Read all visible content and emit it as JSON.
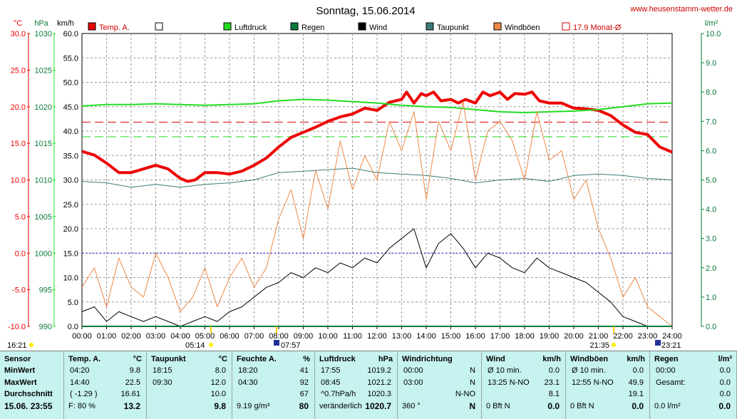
{
  "title": "Sonntag, 15.06.2014",
  "site": "www.heusenstamm-wetter.de",
  "colors": {
    "temp": "#ee0000",
    "pressure": "#22dd22",
    "rain": "#0a7a3a",
    "wind": "#000000",
    "dewpoint": "#3a7a7a",
    "gust": "#ee8844",
    "monthavg": "#dd0000",
    "panel": "#c6f2ef"
  },
  "axes": {
    "temp": {
      "unit": "°C",
      "ticks": [
        "30.0",
        "25.0",
        "20.0",
        "15.0",
        "10.0",
        "5.0",
        "0.0",
        "-5.0",
        "-10.0"
      ]
    },
    "pressure": {
      "unit": "hPa",
      "ticks": [
        "1030",
        "1025",
        "1020",
        "1015",
        "1010",
        "1005",
        "1000",
        "995",
        "990"
      ]
    },
    "wind": {
      "unit": "km/h",
      "ticks": [
        "60.0",
        "55.0",
        "50.0",
        "45.0",
        "40.0",
        "35.0",
        "30.0",
        "25.0",
        "20.0",
        "15.0",
        "10.0",
        "5.0",
        "0.0"
      ]
    },
    "rain": {
      "unit": "l/m²",
      "ticks": [
        "10.0",
        "9.0",
        "8.0",
        "7.0",
        "6.0",
        "5.0",
        "4.0",
        "3.0",
        "2.0",
        "1.0",
        "0.0"
      ]
    },
    "time_ticks": [
      "00:00",
      "01:00",
      "02:00",
      "03:00",
      "04:00",
      "05:00",
      "06:00",
      "07:00",
      "08:00",
      "09:00",
      "10:00",
      "11:00",
      "12:00",
      "13:00",
      "14:00",
      "15:00",
      "16:00",
      "17:00",
      "18:00",
      "19:00",
      "20:00",
      "21:00",
      "22:00",
      "23:00",
      "24:00"
    ]
  },
  "legend": [
    {
      "label": "Temp. A.",
      "color": "#ee0000",
      "type": "fill"
    },
    {
      "label": "",
      "color": "#ffffff",
      "type": "empty"
    },
    {
      "label": "Luftdruck",
      "color": "#22dd22",
      "type": "fill"
    },
    {
      "label": "Regen",
      "color": "#0a7a3a",
      "type": "fill"
    },
    {
      "label": "Wind",
      "color": "#000000",
      "type": "fill"
    },
    {
      "label": "Taupunkt",
      "color": "#3a7a7a",
      "type": "fill"
    },
    {
      "label": "Windböen",
      "color": "#ee8844",
      "type": "fill"
    },
    {
      "label": "17.9 Monat-Ø",
      "color": "#dd0000",
      "type": "outline"
    }
  ],
  "sun_labels": {
    "left": "16:21",
    "sunrise": "05:14",
    "moonset": "07:57",
    "sunset": "21:35",
    "moonrise": "23:21"
  },
  "chart_data": {
    "type": "line",
    "x_unit": "hours",
    "xlim": [
      0,
      24
    ],
    "series": [
      {
        "name": "Temp. A.",
        "axis": "temp",
        "ylim": [
          -10,
          30
        ],
        "x": [
          0,
          0.5,
          1,
          1.5,
          2,
          2.5,
          3,
          3.5,
          4,
          4.3,
          4.6,
          5,
          5.5,
          6,
          6.5,
          7,
          7.5,
          8,
          8.5,
          9,
          9.5,
          10,
          10.5,
          11,
          11.5,
          12,
          12.5,
          13,
          13.2,
          13.5,
          13.8,
          14,
          14.3,
          14.6,
          15,
          15.3,
          15.6,
          16,
          16.3,
          16.6,
          17,
          17.3,
          17.6,
          18,
          18.3,
          18.6,
          19,
          19.5,
          20,
          20.5,
          21,
          21.5,
          22,
          22.5,
          23,
          23.5,
          24
        ],
        "y": [
          13.9,
          13.4,
          12.3,
          11.0,
          11.0,
          11.5,
          12.0,
          11.5,
          10.2,
          9.8,
          10.0,
          11.0,
          11.0,
          10.8,
          11.2,
          12.0,
          13.0,
          14.5,
          15.8,
          16.5,
          17.2,
          18.0,
          18.6,
          19.0,
          19.8,
          19.5,
          20.6,
          21.0,
          22.0,
          20.5,
          21.8,
          21.5,
          22.0,
          20.8,
          21.0,
          20.5,
          21.0,
          20.5,
          22.0,
          21.5,
          22.0,
          21.0,
          21.8,
          21.7,
          22.0,
          20.8,
          20.5,
          20.5,
          19.8,
          19.7,
          19.5,
          18.8,
          17.5,
          16.5,
          16.2,
          14.5,
          13.8
        ]
      },
      {
        "name": "Taupunkt",
        "axis": "temp",
        "ylim": [
          -10,
          30
        ],
        "x": [
          0,
          1,
          2,
          3,
          4,
          5,
          6,
          7,
          8,
          9,
          10,
          11,
          12,
          13,
          14,
          15,
          16,
          17,
          18,
          19,
          20,
          21,
          22,
          23,
          24
        ],
        "y": [
          9.8,
          9.6,
          9.0,
          9.4,
          9.0,
          9.4,
          9.6,
          10.0,
          11.0,
          11.2,
          11.4,
          11.6,
          11.0,
          10.8,
          10.6,
          10.2,
          9.6,
          10.0,
          10.2,
          9.8,
          10.6,
          10.8,
          10.6,
          10.2,
          10.0
        ]
      },
      {
        "name": "Luftdruck",
        "axis": "pressure",
        "ylim": [
          990,
          1030
        ],
        "x": [
          0,
          1,
          2,
          3,
          4,
          5,
          6,
          7,
          8,
          9,
          10,
          11,
          12,
          13,
          14,
          15,
          16,
          17,
          18,
          19,
          20,
          21,
          22,
          23,
          24
        ],
        "y": [
          1020.1,
          1020.3,
          1020.3,
          1020.4,
          1020.3,
          1020.2,
          1020.3,
          1020.4,
          1020.8,
          1021.0,
          1020.9,
          1020.7,
          1020.5,
          1020.2,
          1020.0,
          1019.9,
          1019.6,
          1019.3,
          1019.2,
          1019.3,
          1019.4,
          1019.6,
          1020.0,
          1020.4,
          1020.5
        ]
      },
      {
        "name": "Windböen",
        "axis": "wind",
        "ylim": [
          0,
          60
        ],
        "x": [
          0,
          0.5,
          1,
          1.5,
          2,
          2.5,
          3,
          3.5,
          4,
          4.5,
          5,
          5.5,
          6,
          6.5,
          7,
          7.5,
          8,
          8.5,
          9,
          9.5,
          10,
          10.5,
          11,
          11.5,
          12,
          12.5,
          13,
          13.5,
          14,
          14.5,
          15,
          15.5,
          16,
          16.5,
          17,
          17.5,
          18,
          18.5,
          19,
          19.5,
          20,
          20.5,
          21,
          21.5,
          22,
          22.5,
          23,
          23.5,
          24
        ],
        "y": [
          8,
          12,
          4,
          14,
          8,
          6,
          15,
          10,
          3,
          6,
          12,
          4,
          10,
          14,
          8,
          12,
          22,
          28,
          18,
          32,
          24,
          38,
          28,
          35,
          30,
          42,
          36,
          44,
          26,
          42,
          36,
          46,
          30,
          40,
          42,
          38,
          30,
          44,
          34,
          36,
          26,
          30,
          20,
          14,
          6,
          10,
          4,
          2,
          0
        ]
      },
      {
        "name": "Wind",
        "axis": "wind",
        "ylim": [
          0,
          60
        ],
        "x": [
          0,
          0.5,
          1,
          1.5,
          2,
          2.5,
          3,
          3.5,
          4,
          4.5,
          5,
          5.5,
          6,
          6.5,
          7,
          7.5,
          8,
          8.5,
          9,
          9.5,
          10,
          10.5,
          11,
          11.5,
          12,
          12.5,
          13,
          13.5,
          14,
          14.5,
          15,
          15.5,
          16,
          16.5,
          17,
          17.5,
          18,
          18.5,
          19,
          19.5,
          20,
          20.5,
          21,
          21.5,
          22,
          22.5,
          23,
          23.5,
          24
        ],
        "y": [
          3,
          4,
          1,
          3,
          2,
          1,
          2,
          1,
          0,
          1,
          2,
          1,
          3,
          4,
          6,
          8,
          9,
          11,
          10,
          12,
          11,
          13,
          12,
          14,
          13,
          16,
          18,
          20,
          12,
          17,
          19,
          16,
          12,
          15,
          14,
          12,
          11,
          14,
          12,
          11,
          10,
          9,
          7,
          5,
          2,
          1,
          0,
          0,
          0
        ]
      },
      {
        "name": "Regen",
        "axis": "rain",
        "ylim": [
          0,
          10
        ],
        "x": [
          0,
          24
        ],
        "y": [
          0,
          0
        ]
      }
    ],
    "reference_lines": [
      {
        "name": "17.9 Monat-Ø",
        "axis": "temp",
        "value": 17.9,
        "color": "#dd0000",
        "style": "dashed"
      },
      {
        "name": "pressure-ref",
        "axis": "pressure",
        "value": 1015.9,
        "color": "#22dd22",
        "style": "dashed"
      },
      {
        "name": "zero-line",
        "axis": "temp",
        "value": 0.0,
        "color": "#0000cc",
        "style": "dotted"
      }
    ]
  },
  "stats": {
    "sensor": {
      "header": "Sensor",
      "rows": [
        "MinWert",
        "MaxWert",
        "Durchschnitt"
      ],
      "footer": "15.06. 23:55"
    },
    "temp": {
      "header": "Temp. A.",
      "unit": "°C",
      "rows": [
        [
          "04:20",
          "9.8"
        ],
        [
          "14:40",
          "22.5"
        ],
        [
          "( -1.29 )",
          "16.61"
        ]
      ],
      "footer": [
        "F: 80 %",
        "13.2"
      ]
    },
    "dew": {
      "header": "Taupunkt",
      "unit": "°C",
      "rows": [
        [
          "18:15",
          "8.0"
        ],
        [
          "09:30",
          "12.0"
        ],
        [
          "",
          "10.0"
        ]
      ],
      "footer": [
        "",
        "9.8"
      ]
    },
    "hum": {
      "header": "Feuchte A.",
      "unit": "%",
      "rows": [
        [
          "18:20",
          "41"
        ],
        [
          "04:30",
          "92"
        ],
        [
          "",
          "67"
        ]
      ],
      "footer": [
        "9.19 g/m³",
        "80"
      ]
    },
    "press": {
      "header": "Luftdruck",
      "unit": "hPa",
      "rows": [
        [
          "17:55",
          "1019.2"
        ],
        [
          "08:45",
          "1021.2"
        ],
        [
          "^0.7hPa/h",
          "1020.3"
        ]
      ],
      "footer": [
        "veränderlich",
        "1020.7"
      ]
    },
    "dir": {
      "header": "Windrichtung",
      "unit": "",
      "rows": [
        [
          "00:00",
          "N"
        ],
        [
          "03:00",
          "N"
        ],
        [
          "",
          "N-NO"
        ]
      ],
      "footer": [
        "360 °",
        "N"
      ]
    },
    "wind": {
      "header": "Wind",
      "unit": "km/h",
      "rows": [
        [
          "Ø 10 min.",
          "0.0"
        ],
        [
          "13:25  N-NO",
          "23.1"
        ],
        [
          "",
          "8.1"
        ]
      ],
      "footer": [
        "0 Bft N",
        "0.0"
      ]
    },
    "gust": {
      "header": "Windböen",
      "unit": "km/h",
      "rows": [
        [
          "Ø 10 min.",
          "0.0"
        ],
        [
          "12:55  N-NO",
          "49.9"
        ],
        [
          "",
          "19.1"
        ]
      ],
      "footer": [
        "0 Bft N",
        "0.0"
      ]
    },
    "rain": {
      "header": "Regen",
      "unit": "l/m²",
      "rows": [
        [
          "00:00",
          "0.0"
        ],
        [
          "Gesamt:",
          "0.0"
        ],
        [
          "",
          "0.0"
        ]
      ],
      "footer": [
        "0.0 l/m²",
        "0.0"
      ]
    }
  }
}
